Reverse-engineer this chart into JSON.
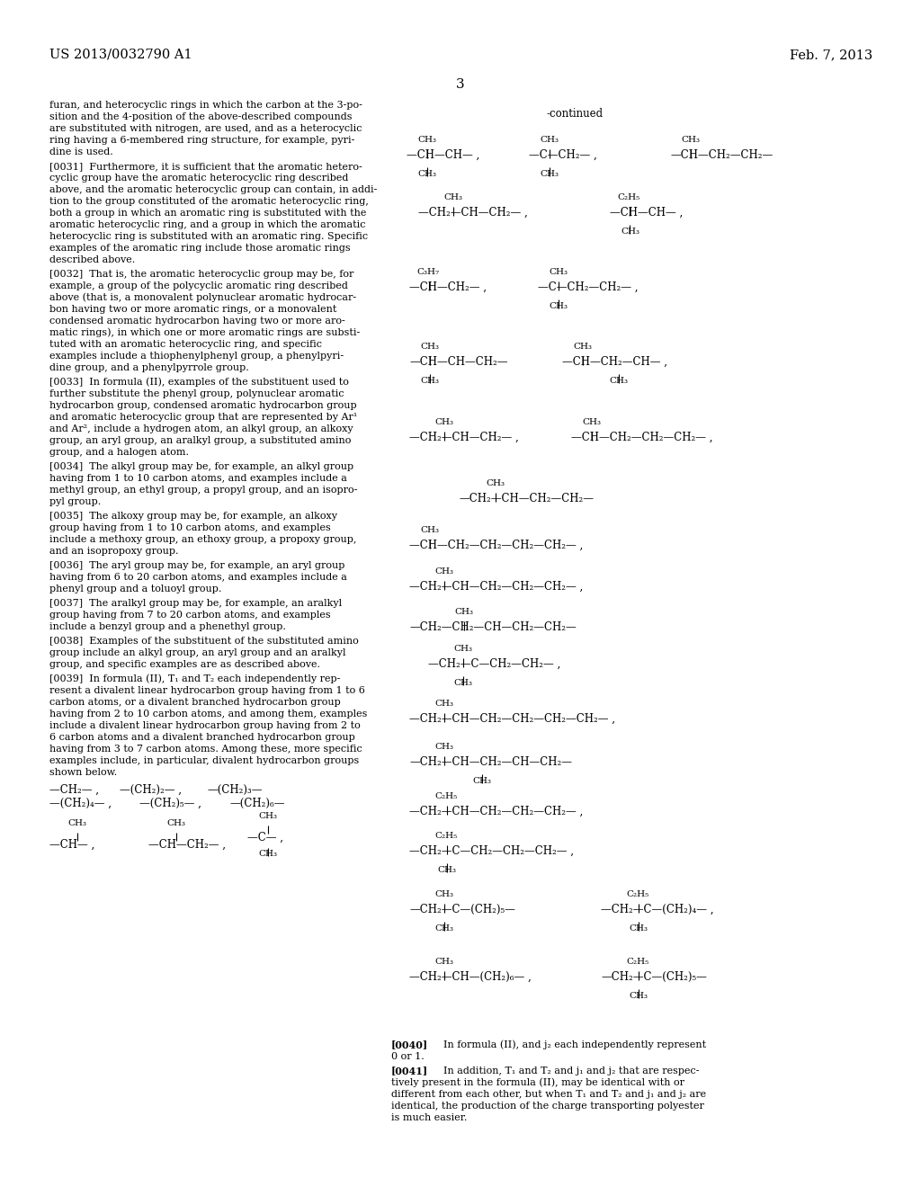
{
  "page_header_left": "US 2013/0032790 A1",
  "page_header_right": "Feb. 7, 2013",
  "page_number": "3",
  "background_color": "#ffffff",
  "text_color": "#000000"
}
